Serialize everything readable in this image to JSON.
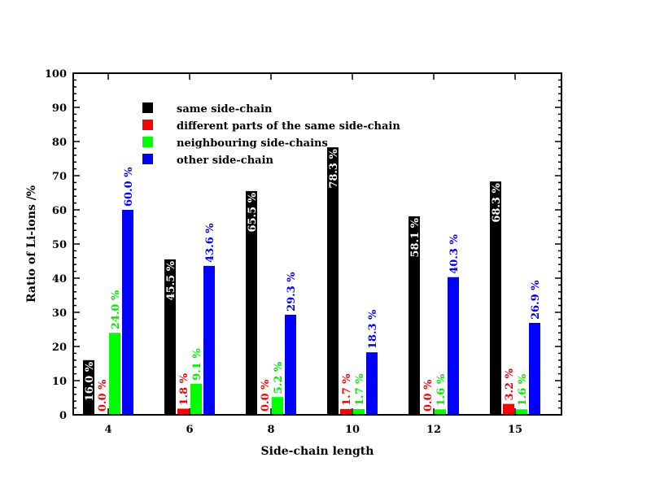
{
  "chart_data": {
    "type": "bar",
    "xlabel": "Side-chain length",
    "ylabel": "Ratio of Li-ions /%",
    "ylim": [
      0,
      100
    ],
    "yticks": [
      "0",
      "10",
      "20",
      "30",
      "40",
      "50",
      "60",
      "70",
      "80",
      "90",
      "100"
    ],
    "categories": [
      "4",
      "6",
      "8",
      "10",
      "12",
      "15"
    ],
    "legend_position": "top-left",
    "grid": false,
    "series": [
      {
        "name": "same side-chain",
        "color": "#000000",
        "label_color": "#ffffff",
        "values": [
          16.0,
          45.5,
          65.5,
          78.3,
          58.1,
          68.3
        ],
        "labels": [
          "16.0 %",
          "45.5 %",
          "65.5 %",
          "78.3 %",
          "58.1 %",
          "68.3 %"
        ]
      },
      {
        "name": "different parts of the same side-chain",
        "color": "#ff0000",
        "label_color": "#ff0000",
        "values": [
          0.0,
          1.8,
          0.0,
          1.7,
          0.0,
          3.2
        ],
        "labels": [
          "0.0 %",
          "1.8 %",
          "0.0 %",
          "1.7 %",
          "0.0 %",
          "3.2 %"
        ]
      },
      {
        "name": "neighbouring side-chains",
        "color": "#00ff00",
        "label_color": "#00ee00",
        "values": [
          24.0,
          9.1,
          5.2,
          1.7,
          1.6,
          1.6
        ],
        "labels": [
          "24.0 %",
          "9.1 %",
          "5.2 %",
          "1.7 %",
          "1.6 %",
          "1.6 %"
        ]
      },
      {
        "name": "other side-chain",
        "color": "#0000ff",
        "label_color": "#0000ff",
        "values": [
          60.0,
          43.6,
          29.3,
          18.3,
          40.3,
          26.9
        ],
        "labels": [
          "60.0 %",
          "43.6 %",
          "29.3 %",
          "18.3 %",
          "40.3 %",
          "26.9 %"
        ]
      }
    ]
  }
}
